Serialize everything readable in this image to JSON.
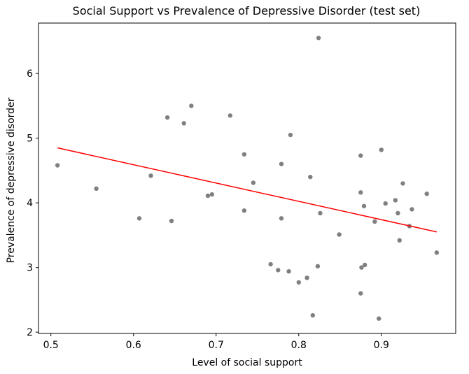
{
  "chart_data": {
    "type": "scatter",
    "title": "Social Support vs Prevalence of Depressive Disorder (test set)",
    "xlabel": "Level of social support",
    "ylabel": "Prevalence of depressive disorder",
    "xlim": [
      0.485,
      0.99
    ],
    "ylim": [
      1.98,
      6.78
    ],
    "xticks": [
      0.5,
      0.6,
      0.7,
      0.8,
      0.9
    ],
    "yticks": [
      2,
      3,
      4,
      5,
      6
    ],
    "xtick_labels": [
      "0.5",
      "0.6",
      "0.7",
      "0.8",
      "0.9"
    ],
    "ytick_labels": [
      "2",
      "3",
      "4",
      "5",
      "6"
    ],
    "grid": false,
    "series": [
      {
        "kind": "scatter",
        "color": "#808080",
        "points": [
          [
            0.508,
            4.58
          ],
          [
            0.555,
            4.22
          ],
          [
            0.607,
            3.76
          ],
          [
            0.621,
            4.42
          ],
          [
            0.641,
            5.32
          ],
          [
            0.646,
            3.72
          ],
          [
            0.661,
            5.23
          ],
          [
            0.67,
            5.5
          ],
          [
            0.69,
            4.11
          ],
          [
            0.695,
            4.13
          ],
          [
            0.717,
            5.35
          ],
          [
            0.734,
            4.75
          ],
          [
            0.734,
            3.88
          ],
          [
            0.745,
            4.31
          ],
          [
            0.766,
            3.05
          ],
          [
            0.775,
            2.96
          ],
          [
            0.779,
            4.6
          ],
          [
            0.779,
            3.76
          ],
          [
            0.788,
            2.94
          ],
          [
            0.79,
            5.05
          ],
          [
            0.8,
            2.77
          ],
          [
            0.81,
            2.84
          ],
          [
            0.814,
            4.4
          ],
          [
            0.817,
            2.26
          ],
          [
            0.823,
            3.02
          ],
          [
            0.824,
            6.55
          ],
          [
            0.826,
            3.84
          ],
          [
            0.849,
            3.51
          ],
          [
            0.875,
            4.73
          ],
          [
            0.875,
            4.16
          ],
          [
            0.875,
            2.6
          ],
          [
            0.876,
            3.0
          ],
          [
            0.879,
            3.95
          ],
          [
            0.88,
            3.04
          ],
          [
            0.892,
            3.71
          ],
          [
            0.897,
            2.21
          ],
          [
            0.9,
            4.82
          ],
          [
            0.905,
            3.99
          ],
          [
            0.917,
            4.04
          ],
          [
            0.92,
            3.84
          ],
          [
            0.922,
            3.42
          ],
          [
            0.926,
            4.3
          ],
          [
            0.934,
            3.64
          ],
          [
            0.937,
            3.9
          ],
          [
            0.955,
            4.14
          ],
          [
            0.967,
            3.23
          ]
        ]
      },
      {
        "kind": "line",
        "color": "#ff0000",
        "points": [
          [
            0.508,
            4.85
          ],
          [
            0.967,
            3.55
          ]
        ]
      }
    ]
  }
}
